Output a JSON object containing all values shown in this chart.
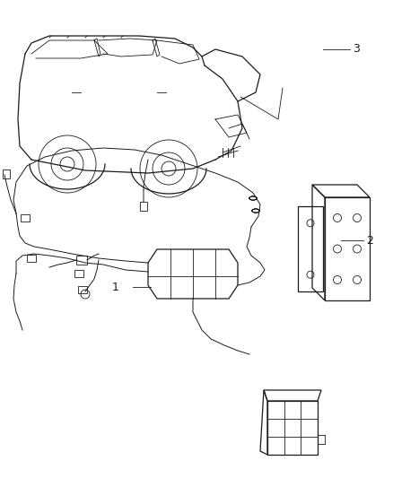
{
  "background_color": "#ffffff",
  "figure_width": 4.38,
  "figure_height": 5.33,
  "dpi": 100,
  "label_1": "1",
  "label_2": "2",
  "label_3": "3",
  "line_color": "#1a1a1a",
  "text_color": "#1a1a1a",
  "font_size": 9,
  "lw_main": 0.9,
  "lw_thin": 0.6,
  "lw_wire": 0.7
}
